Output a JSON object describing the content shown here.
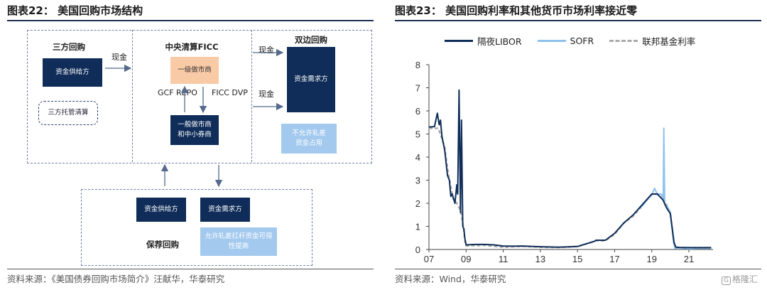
{
  "left": {
    "title": "图表22：  美国回购市场结构",
    "source": "资料来源：《美国债券回购市场简介》汪献华，华泰研究",
    "tri_party": {
      "title": "三方回购",
      "box1": "资金供给方",
      "box2": "三方托管清算"
    },
    "center": {
      "title": "中央清算FICC",
      "primary": "一级做市商",
      "secondary": "一般做市商和中小券商",
      "gcf": "GCF REPO",
      "ficc": "FICC DVP"
    },
    "bilateral": {
      "title": "双边回购",
      "box1": "资金需求方",
      "box2": "不允许轧差资金占用"
    },
    "cash_label": "现金",
    "bottom": {
      "title": "保荐回购",
      "box1": "资金供给方",
      "box2": "资金需求方",
      "box3": "允许轧差扛杆资金可得性提高"
    }
  },
  "right": {
    "title": "图表23：  美国回购利率和其他货币市场利率接近零",
    "source": "资料来源：Wind，华泰研究",
    "watermark": "格隆汇"
  },
  "chart_data": {
    "type": "line",
    "title": "",
    "xlabel": "",
    "ylabel": "",
    "ylim": [
      0,
      8
    ],
    "yticks": [
      0,
      1,
      2,
      3,
      4,
      5,
      6,
      7,
      8
    ],
    "xlim": [
      2007,
      2022.3
    ],
    "xticks": [
      2007,
      2009,
      2011,
      2013,
      2015,
      2017,
      2019,
      2021
    ],
    "xtick_labels": [
      "07",
      "09",
      "11",
      "13",
      "15",
      "17",
      "19",
      "21"
    ],
    "grid": false,
    "legend_position": "top",
    "series": [
      {
        "name": "隔夜LIBOR",
        "color": "#0f2d58",
        "style": "solid",
        "x": [
          2007.0,
          2007.3,
          2007.45,
          2007.55,
          2007.62,
          2007.7,
          2007.85,
          2008.0,
          2008.1,
          2008.18,
          2008.25,
          2008.4,
          2008.5,
          2008.55,
          2008.62,
          2008.7,
          2008.75,
          2008.82,
          2008.88,
          2008.93,
          2009.0,
          2009.5,
          2010.0,
          2010.5,
          2011.0,
          2011.5,
          2012.0,
          2013.0,
          2014.0,
          2015.0,
          2015.9,
          2016.0,
          2016.5,
          2017.0,
          2017.5,
          2018.0,
          2018.5,
          2019.0,
          2019.3,
          2019.6,
          2019.8,
          2020.0,
          2020.2,
          2020.3,
          2020.5,
          2021.0,
          2022.2
        ],
        "y": [
          5.3,
          5.32,
          5.9,
          5.4,
          5.6,
          4.9,
          4.3,
          3.2,
          3.0,
          2.3,
          2.4,
          2.0,
          2.8,
          2.4,
          6.9,
          1.6,
          5.6,
          1.0,
          0.9,
          0.5,
          0.2,
          0.22,
          0.22,
          0.2,
          0.15,
          0.14,
          0.15,
          0.12,
          0.1,
          0.13,
          0.35,
          0.4,
          0.4,
          0.7,
          1.15,
          1.5,
          1.95,
          2.4,
          2.4,
          2.15,
          1.8,
          1.55,
          0.3,
          0.1,
          0.09,
          0.08,
          0.08
        ]
      },
      {
        "name": "SOFR",
        "color": "#8ec2ee",
        "style": "solid",
        "x": [
          2018.3,
          2018.5,
          2018.8,
          2019.0,
          2019.15,
          2019.3,
          2019.5,
          2019.62,
          2019.65,
          2019.7,
          2019.85,
          2020.0,
          2020.18,
          2020.25,
          2020.5,
          2021.0,
          2021.5,
          2022.2
        ],
        "y": [
          1.75,
          1.9,
          2.2,
          2.35,
          2.65,
          2.4,
          2.4,
          2.2,
          5.25,
          1.95,
          1.85,
          1.6,
          0.3,
          0.05,
          0.07,
          0.03,
          0.05,
          0.05
        ]
      },
      {
        "name": "联邦基金利率",
        "color": "#aaaaaa",
        "style": "dashed",
        "x": [
          2007.0,
          2007.5,
          2007.7,
          2007.85,
          2008.0,
          2008.15,
          2008.3,
          2008.5,
          2008.7,
          2008.85,
          2008.95,
          2009.0,
          2010.0,
          2011.0,
          2012.0,
          2013.0,
          2014.0,
          2015.0,
          2015.95,
          2016.0,
          2016.5,
          2017.0,
          2017.5,
          2018.0,
          2018.5,
          2019.0,
          2019.5,
          2019.7,
          2019.85,
          2020.0,
          2020.2,
          2020.3,
          2021.0,
          2022.2
        ],
        "y": [
          5.25,
          5.25,
          4.8,
          4.4,
          3.5,
          2.8,
          2.2,
          2.0,
          1.7,
          1.0,
          0.3,
          0.16,
          0.18,
          0.1,
          0.14,
          0.1,
          0.09,
          0.13,
          0.36,
          0.38,
          0.38,
          0.66,
          1.15,
          1.45,
          1.9,
          2.4,
          2.4,
          2.1,
          1.85,
          1.55,
          0.25,
          0.08,
          0.08,
          0.08
        ]
      }
    ]
  }
}
